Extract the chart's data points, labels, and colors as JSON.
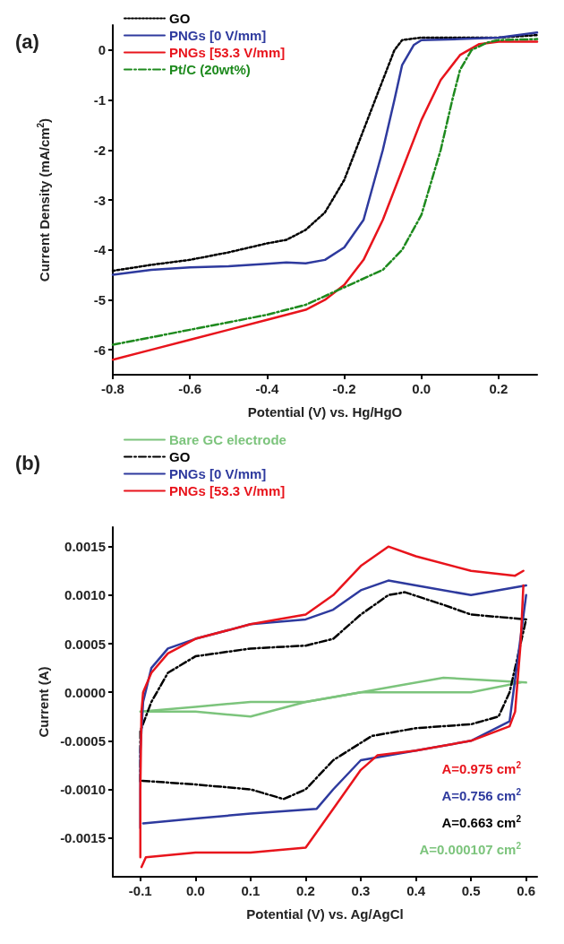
{
  "chart_data": [
    {
      "type": "line",
      "title": "(a)",
      "xlabel": "Potential (V) vs. Hg/HgO",
      "ylabel": "Current Density (mA/cm$^{2}$)",
      "xlim": [
        -0.8,
        0.3
      ],
      "ylim": [
        -6.5,
        0.5
      ],
      "xticks": [
        {
          "value": -0.8,
          "label": "-0.8"
        },
        {
          "value": -0.6,
          "label": "-0.6"
        },
        {
          "value": -0.4,
          "label": "-0.4"
        },
        {
          "value": -0.2,
          "label": "-0.2"
        },
        {
          "value": 0,
          "label": "0.0"
        },
        {
          "value": 0.2,
          "label": "0.2"
        }
      ],
      "yticks": [
        -6,
        -5,
        -4,
        -3,
        -2,
        -1,
        0
      ],
      "legend": "top left",
      "grid": false,
      "marker": "none",
      "series": [
        {
          "name": "GO",
          "color": "#000000",
          "line_style": "dotted",
          "x": [
            -0.8,
            -0.7,
            -0.6,
            -0.5,
            -0.4,
            -0.35,
            -0.3,
            -0.25,
            -0.2,
            -0.15,
            -0.1,
            -0.07,
            -0.05,
            0,
            0.1,
            0.2,
            0.3
          ],
          "values": [
            -4.42,
            -4.3,
            -4.2,
            -4.05,
            -3.87,
            -3.8,
            -3.6,
            -3.25,
            -2.6,
            -1.6,
            -0.6,
            0,
            0.2,
            0.25,
            0.25,
            0.25,
            0.3
          ]
        },
        {
          "name": "PNGs [0 V/mm]",
          "color": "#2e3a9e",
          "line_style": "solid",
          "x": [
            -0.8,
            -0.7,
            -0.6,
            -0.5,
            -0.4,
            -0.35,
            -0.3,
            -0.25,
            -0.2,
            -0.15,
            -0.1,
            -0.07,
            -0.05,
            -0.02,
            0,
            0.1,
            0.2,
            0.3
          ],
          "values": [
            -4.5,
            -4.4,
            -4.35,
            -4.33,
            -4.28,
            -4.25,
            -4.27,
            -4.2,
            -3.95,
            -3.4,
            -2,
            -1,
            -0.3,
            0.1,
            0.2,
            0.22,
            0.25,
            0.35
          ]
        },
        {
          "name": "PNGs [53.3 V/mm]",
          "color": "#e8141c",
          "line_style": "solid",
          "x": [
            -0.8,
            -0.7,
            -0.6,
            -0.5,
            -0.4,
            -0.3,
            -0.25,
            -0.2,
            -0.15,
            -0.1,
            -0.05,
            0,
            0.05,
            0.1,
            0.15,
            0.2,
            0.3
          ],
          "values": [
            -6.2,
            -6,
            -5.8,
            -5.6,
            -5.4,
            -5.2,
            -5,
            -4.7,
            -4.2,
            -3.4,
            -2.4,
            -1.4,
            -0.6,
            -0.1,
            0.12,
            0.17,
            0.17
          ]
        },
        {
          "name": "Pt/C (20wt%)",
          "color": "#1e8a1e",
          "line_style": "dashed",
          "x": [
            -0.8,
            -0.7,
            -0.6,
            -0.5,
            -0.4,
            -0.3,
            -0.2,
            -0.1,
            -0.05,
            0,
            0.05,
            0.08,
            0.1,
            0.13,
            0.17,
            0.2,
            0.3
          ],
          "values": [
            -5.9,
            -5.75,
            -5.6,
            -5.45,
            -5.3,
            -5.1,
            -4.75,
            -4.4,
            -4,
            -3.3,
            -2,
            -1,
            -0.4,
            0,
            0.15,
            0.2,
            0.22
          ]
        }
      ]
    },
    {
      "type": "line",
      "title": "(b)",
      "xlabel": "Potential (V) vs. Ag/AgCl",
      "ylabel": "Current (A)",
      "xlim": [
        -0.15,
        0.62
      ],
      "ylim": [
        -0.0019,
        0.0017
      ],
      "xticks": [
        {
          "value": -0.1,
          "label": "-0.1"
        },
        {
          "value": 0,
          "label": "0.0"
        },
        {
          "value": 0.1,
          "label": "0.1"
        },
        {
          "value": 0.2,
          "label": "0.2"
        },
        {
          "value": 0.3,
          "label": "0.3"
        },
        {
          "value": 0.4,
          "label": "0.4"
        },
        {
          "value": 0.5,
          "label": "0.5"
        },
        {
          "value": 0.6,
          "label": "0.6"
        }
      ],
      "yticks": [
        {
          "value": -0.0015,
          "label": "-0.0015"
        },
        {
          "value": -0.001,
          "label": "-0.0010"
        },
        {
          "value": -0.0005,
          "label": "-0.0005"
        },
        {
          "value": 0,
          "label": "0.0000"
        },
        {
          "value": 0.0005,
          "label": "0.0005"
        },
        {
          "value": 0.001,
          "label": "0.0010"
        },
        {
          "value": 0.0015,
          "label": "0.0015"
        }
      ],
      "legend": "top left",
      "grid": false,
      "marker": "none",
      "annotations": [
        "A=0.975 cm$^{2}$",
        "A=0.756 cm$^{2}$",
        "A=0.663 cm$^{2}$",
        "A=0.000107 cm$^{2}$"
      ],
      "series": [
        {
          "name": "Bare GC electrode",
          "color": "#7cc47c",
          "line_style": "solid",
          "x": [
            -0.1,
            0,
            0.1,
            0.2,
            0.3,
            0.45,
            0.6
          ],
          "values": [
            -0.0002,
            -0.00015,
            -0.0001,
            -0.0001,
            0,
            0.00015,
            0.0001
          ]
        },
        {
          "color": "#7cc47c",
          "line_style": "solid",
          "x": [
            0.59,
            0.5,
            0.4,
            0.3,
            0.2,
            0.1,
            0,
            -0.09
          ],
          "values": [
            0.0001,
            0,
            0,
            0,
            -0.0001,
            -0.00025,
            -0.0002,
            -0.0002
          ]
        },
        {
          "name": "GO",
          "color": "#000000",
          "line_style": "dashed",
          "x": [
            -0.1,
            -0.1,
            -0.08,
            -0.05,
            0,
            0.1,
            0.2,
            0.25,
            0.3,
            0.35,
            0.38,
            0.45,
            0.5,
            0.6,
            0.59,
            0.57,
            0.55,
            0.5,
            0.4,
            0.32,
            0.25,
            0.2,
            0.16,
            0.1,
            0,
            -0.1
          ],
          "values": [
            -0.00092,
            -0.0004,
            -0.0001,
            0.0002,
            0.00037,
            0.00045,
            0.00048,
            0.00055,
            0.0008,
            0.001,
            0.00103,
            0.0009,
            0.0008,
            0.00075,
            0.0005,
            0,
            -0.00025,
            -0.00033,
            -0.00037,
            -0.00045,
            -0.0007,
            -0.001,
            -0.0011,
            -0.001,
            -0.00095,
            -0.00091
          ]
        },
        {
          "name": "PNGs [0 V/mm]",
          "color": "#2e3a9e",
          "line_style": "solid",
          "x": [
            -0.1,
            -0.1,
            -0.095,
            -0.08,
            -0.05,
            0,
            0.1,
            0.2,
            0.25,
            0.3,
            0.35,
            0.4,
            0.5,
            0.6
          ],
          "values": [
            -0.0014,
            -0.0006,
            -0.0001,
            0.00025,
            0.00045,
            0.00055,
            0.0007,
            0.00075,
            0.00085,
            0.00105,
            0.00115,
            0.0011,
            0.001,
            0.0011
          ]
        },
        {
          "name": "PNGs [53.3 V/mm]",
          "color": "#e8141c",
          "line_style": "solid",
          "x": [
            -0.1,
            -0.1,
            -0.098,
            -0.095,
            -0.08,
            -0.05,
            0,
            0.1,
            0.2,
            0.25,
            0.3,
            0.35,
            0.4,
            0.5,
            0.58,
            0.595
          ],
          "values": [
            -0.0017,
            -0.001,
            -0.0002,
            0,
            0.0002,
            0.0004,
            0.00055,
            0.0007,
            0.0008,
            0.001,
            0.0013,
            0.0015,
            0.0014,
            0.00125,
            0.0012,
            0.00125
          ]
        },
        {
          "color": "#2e3a9e",
          "line_style": "solid",
          "x": [
            0.6,
            0.57,
            0.5,
            0.4,
            0.3,
            0.25,
            0.22,
            0.1,
            0,
            -0.095
          ],
          "values": [
            0.001,
            -0.0003,
            -0.0005,
            -0.0006,
            -0.0007,
            -0.001,
            -0.0012,
            -0.00125,
            -0.0013,
            -0.00135
          ]
        },
        {
          "color": "#e8141c",
          "line_style": "solid",
          "x": [
            0.595,
            0.59,
            0.58,
            0.57,
            0.5,
            0.4,
            0.33,
            0.3,
            0.25,
            0.2,
            0.1,
            0,
            -0.09,
            -0.098
          ],
          "values": [
            0.0011,
            0.0005,
            -0.0002,
            -0.00035,
            -0.0005,
            -0.0006,
            -0.00065,
            -0.0008,
            -0.0012,
            -0.0016,
            -0.00165,
            -0.00165,
            -0.0017,
            -0.0018
          ]
        }
      ]
    }
  ]
}
